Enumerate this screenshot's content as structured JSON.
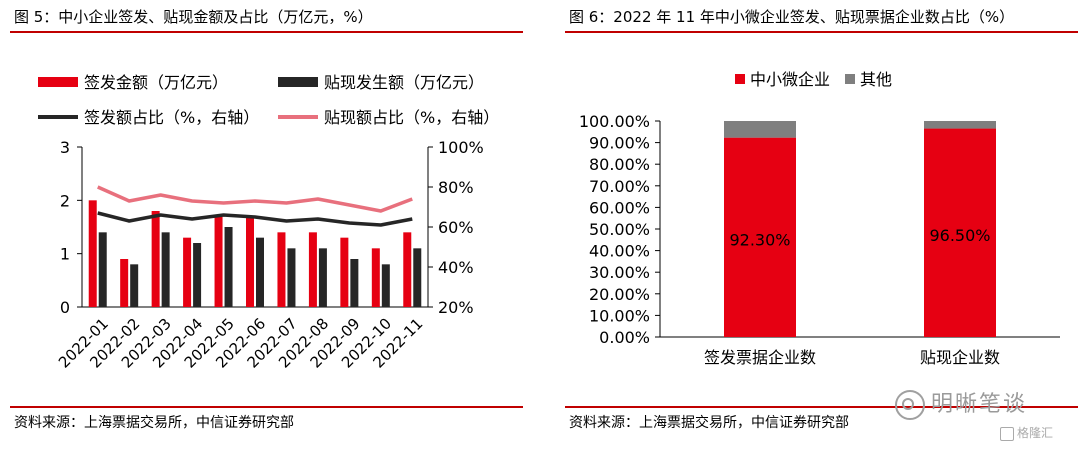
{
  "left": {
    "title": "图 5：中小企业签发、贴现金额及占比（万亿元，%）",
    "source": "资料来源：上海票据交易所，中信证券研究部"
  },
  "right": {
    "title": "图 6：2022 年 11 年中小微企业签发、贴现票据企业数占比（%）",
    "source": "资料来源：上海票据交易所，中信证券研究部"
  },
  "watermark": {
    "main": "明晰笔谈",
    "sub": "格隆汇"
  },
  "colors": {
    "red": "#e60012",
    "black": "#262626",
    "pink": "#e8707d",
    "gray": "#7f7f7f",
    "rule": "#c00000"
  },
  "chart_data": [
    {
      "type": "bar",
      "title": "图 5：中小企业签发、贴现金额及占比（万亿元，%）",
      "categories": [
        "2022-01",
        "2022-02",
        "2022-03",
        "2022-04",
        "2022-05",
        "2022-06",
        "2022-07",
        "2022-08",
        "2022-09",
        "2022-10",
        "2022-11"
      ],
      "series": [
        {
          "name": "签发金额（万亿元）",
          "type": "bar",
          "axis": "left",
          "color": "#e60012",
          "values": [
            2.0,
            0.9,
            1.8,
            1.3,
            1.7,
            1.7,
            1.4,
            1.4,
            1.3,
            1.1,
            1.4
          ]
        },
        {
          "name": "贴现发生额（万亿元）",
          "type": "bar",
          "axis": "left",
          "color": "#262626",
          "values": [
            1.4,
            0.8,
            1.4,
            1.2,
            1.5,
            1.3,
            1.1,
            1.1,
            0.9,
            0.8,
            1.1
          ]
        },
        {
          "name": "签发额占比（%，右轴）",
          "type": "line",
          "axis": "right",
          "color": "#262626",
          "values": [
            67,
            63,
            66,
            64,
            66,
            65,
            63,
            64,
            62,
            61,
            64
          ]
        },
        {
          "name": "贴现额占比（%，右轴）",
          "type": "line",
          "axis": "right",
          "color": "#e8707d",
          "values": [
            80,
            73,
            76,
            73,
            72,
            73,
            72,
            74,
            71,
            68,
            74
          ]
        }
      ],
      "ylim": [
        0,
        3
      ],
      "yticks": [
        "0",
        "1",
        "2",
        "3"
      ],
      "y2lim": [
        20,
        100
      ],
      "y2ticks": [
        "20%",
        "40%",
        "60%",
        "80%",
        "100%"
      ],
      "legend": "top",
      "grid": false
    },
    {
      "type": "bar",
      "stacked": true,
      "title": "图 6：2022 年 11 年中小微企业签发、贴现票据企业数占比（%）",
      "categories": [
        "签发票据企业数",
        "贴现企业数"
      ],
      "series": [
        {
          "name": "中小微企业",
          "color": "#e60012",
          "values": [
            92.3,
            96.5
          ],
          "labels": [
            "92.30%",
            "96.50%"
          ]
        },
        {
          "name": "其他",
          "color": "#7f7f7f",
          "values": [
            7.7,
            3.5
          ]
        }
      ],
      "ylim": [
        0,
        100
      ],
      "yticks": [
        "0.00%",
        "10.00%",
        "20.00%",
        "30.00%",
        "40.00%",
        "50.00%",
        "60.00%",
        "70.00%",
        "80.00%",
        "90.00%",
        "100.00%"
      ],
      "legend": "top",
      "grid": false
    }
  ]
}
